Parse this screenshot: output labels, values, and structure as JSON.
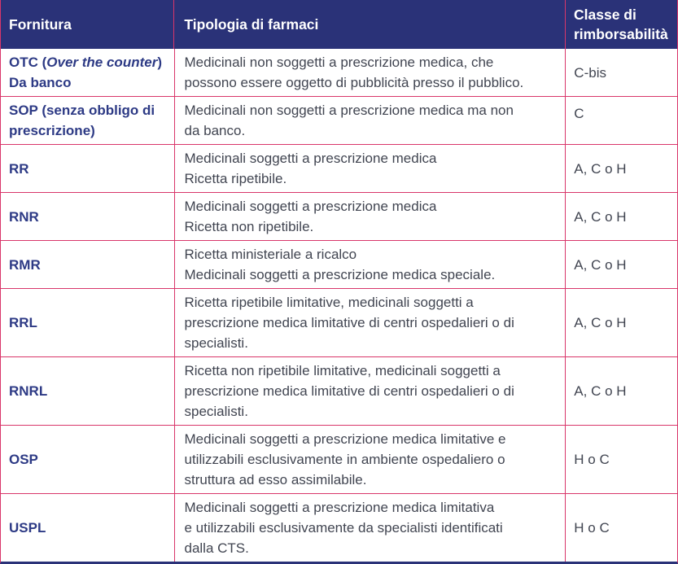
{
  "colors": {
    "header_bg": "#2a3278",
    "border_pink": "#d9366a",
    "code_text": "#2d3a85",
    "body_text": "#414551"
  },
  "table": {
    "columns": [
      "Fornitura",
      "Tipologia di farmaci",
      "Classe di rimborsabilità"
    ],
    "rows": [
      {
        "code_prefix": "OTC (",
        "code_italic": "Over the counter",
        "code_suffix": ")",
        "code_line2": "Da banco",
        "tipologia": "Medicinali non soggetti a prescrizione medica, che\npossono essere oggetto di pubblicità presso il pubblico.",
        "classe": "C-bis"
      },
      {
        "code": "SOP (senza obbligo di\nprescrizione)",
        "tipologia": "Medicinali non soggetti a prescrizione medica ma non\nda banco.",
        "classe": "C"
      },
      {
        "code": "RR",
        "tipologia": "Medicinali soggetti a prescrizione medica\nRicetta ripetibile.",
        "classe": "A, C o H"
      },
      {
        "code": "RNR",
        "tipologia": "Medicinali soggetti a prescrizione medica\nRicetta non ripetibile.",
        "classe": "A, C o H"
      },
      {
        "code": "RMR",
        "tipologia": "Ricetta ministeriale a ricalco\nMedicinali soggetti a prescrizione medica speciale.",
        "classe": "A, C o H"
      },
      {
        "code": "RRL",
        "tipologia": "Ricetta ripetibile limitative, medicinali soggetti a\nprescrizione medica limitative di centri ospedalieri o di\nspecialisti.",
        "classe": "A, C o H"
      },
      {
        "code": "RNRL",
        "tipologia": "Ricetta non ripetibile limitative, medicinali soggetti a\nprescrizione medica limitative di centri ospedalieri o di\nspecialisti.",
        "classe": "A, C o H"
      },
      {
        "code": "OSP",
        "tipologia": "Medicinali soggetti a prescrizione medica limitative e\nutilizzabili esclusivamente in ambiente ospedaliero o\nstruttura ad esso assimilabile.",
        "classe": "H o C"
      },
      {
        "code": "USPL",
        "tipologia": "Medicinali soggetti a prescrizione medica limitativa\ne utilizzabili esclusivamente da specialisti identificati\ndalla CTS.",
        "classe": "H o C"
      }
    ]
  }
}
